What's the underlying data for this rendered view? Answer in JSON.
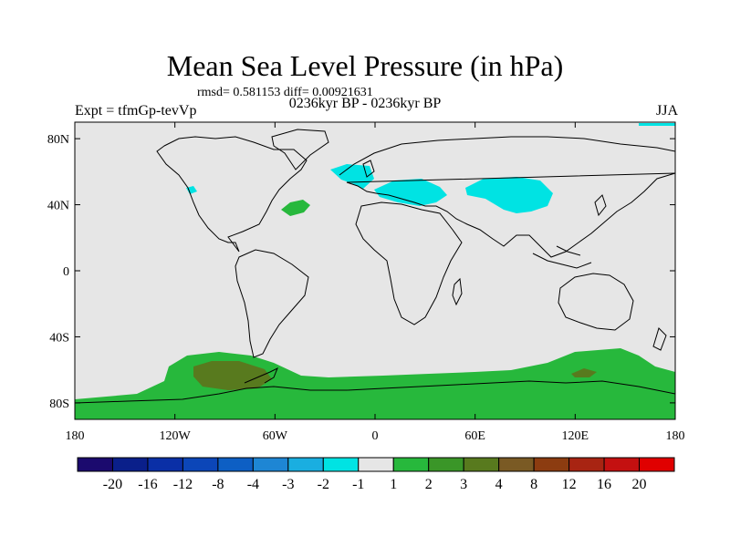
{
  "title": "Mean Sea Level Pressure (in hPa)",
  "stats_line": "rmsd= 0.581153 diff= 0.00921631",
  "period_line": "0236kyr BP - 0236kyr BP",
  "experiment_label": "Expt = tfmGp-tevVp",
  "season_label": "JJA",
  "map": {
    "projection": "cylindrical-equidistant",
    "lon_range": [
      -180,
      180
    ],
    "lat_range": [
      -90,
      90
    ],
    "background_color": "#e6e6e6",
    "lon_ticks": [
      "180",
      "120W",
      "60W",
      "0",
      "60E",
      "120E",
      "180"
    ],
    "lat_ticks": [
      "80N",
      "40N",
      "0",
      "40S",
      "80S"
    ]
  },
  "colorbar": {
    "labels": [
      "-20",
      "-16",
      "-12",
      "-8",
      "-4",
      "-3",
      "-2",
      "-1",
      "1",
      "2",
      "3",
      "4",
      "8",
      "12",
      "16",
      "20"
    ],
    "colors": [
      "#1b0a6e",
      "#0a1f8a",
      "#0a2fa6",
      "#0c46b8",
      "#0d5fc4",
      "#1e86d4",
      "#1aaee0",
      "#00e3e3",
      "#e6e6e6",
      "#27b83c",
      "#3a9628",
      "#587a1e",
      "#7a5a24",
      "#8c3c10",
      "#a82412",
      "#c41010",
      "#e00000"
    ]
  }
}
